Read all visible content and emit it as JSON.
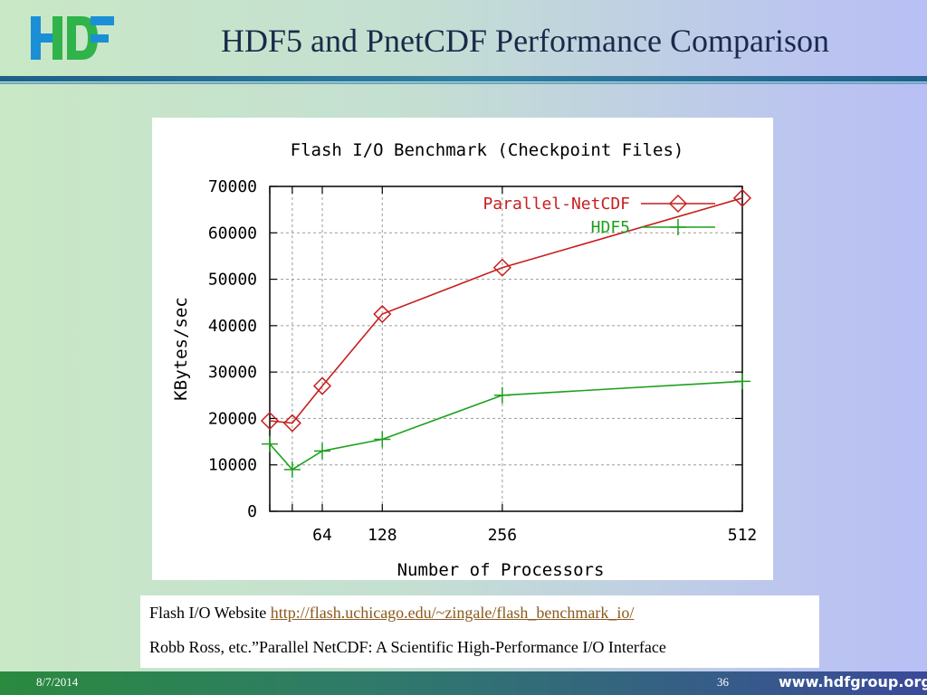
{
  "slide": {
    "title": "HDF5 and PnetCDF Performance Comparison",
    "logo_text": "HDF"
  },
  "references": {
    "line1_prefix": "Flash I/O Website ",
    "line1_link": "http://flash.uchicago.edu/~zingale/flash_benchmark_io/",
    "line2": "Robb Ross, etc.”Parallel NetCDF: A Scientific High-Performance I/O Interface"
  },
  "footer": {
    "date": "8/7/2014",
    "page": "36",
    "url": "www.hdfgroup.org"
  },
  "colors": {
    "pnetcdf": "#c81e1e",
    "hdf5": "#1ea01e",
    "logo_blue": "#1b8fd6",
    "logo_green": "#2fb34a"
  },
  "chart_data": {
    "type": "line",
    "title": "Flash I/O Benchmark (Checkpoint Files)",
    "xlabel": "Number of Processors",
    "ylabel": "KBytes/sec",
    "x_tick_labels": [
      "64",
      "128",
      "256",
      "512"
    ],
    "x_tick_values": [
      64,
      128,
      256,
      512
    ],
    "xlim": [
      8,
      512
    ],
    "ylim": [
      0,
      70000
    ],
    "y_ticks": [
      0,
      10000,
      20000,
      30000,
      40000,
      50000,
      60000,
      70000
    ],
    "grid": true,
    "legend_position": "top-right",
    "series": [
      {
        "name": "Parallel-NetCDF",
        "color": "#c81e1e",
        "marker": "diamond",
        "x": [
          8,
          32,
          64,
          128,
          256,
          512
        ],
        "y": [
          19500,
          19000,
          27000,
          42500,
          52500,
          67500
        ]
      },
      {
        "name": "HDF5",
        "color": "#1ea01e",
        "marker": "plus",
        "x": [
          8,
          32,
          64,
          128,
          256,
          512
        ],
        "y": [
          14500,
          9000,
          13000,
          15500,
          25000,
          28000
        ]
      }
    ]
  }
}
